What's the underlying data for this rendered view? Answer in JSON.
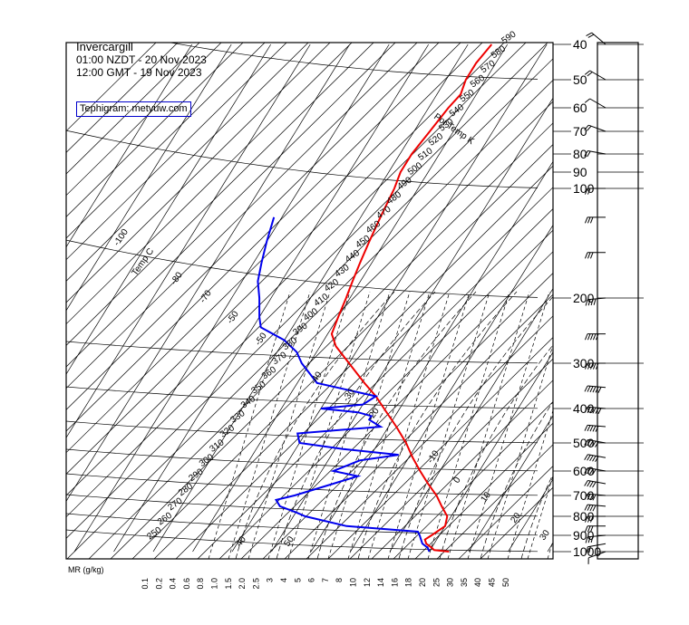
{
  "header": {
    "station": "Invercargill",
    "local_time": "01:00 NZDT - 20 Nov 2023",
    "utc_time": "12:00 GMT - 19 Nov 2023",
    "credit": "Tephigram: metvuw.com"
  },
  "colors": {
    "temperature": "#ee0000",
    "dewpoint": "#0000ee",
    "grid": "#000000",
    "credit_border": "#0000cc"
  },
  "chart_data": {
    "type": "tephigram",
    "title": "Invercargill",
    "pressure_levels_hpa": [
      1000,
      900,
      800,
      700,
      600,
      500,
      400,
      300,
      200,
      100,
      90,
      80,
      70,
      60,
      50,
      40
    ],
    "pressure_tick_labels": [
      "1000",
      "900",
      "800",
      "700",
      "600",
      "500",
      "400",
      "300",
      "200",
      "100",
      "90",
      "80",
      "70",
      "60",
      "50",
      "40"
    ],
    "mixing_ratio_label": "MR (g/kg)",
    "mixing_ratio_ticks": [
      "0.1",
      "0.2",
      "0.4",
      "0.6",
      "0.8",
      "1.0",
      "1.5",
      "2.0",
      "2.5",
      "3",
      "4",
      "5",
      "6",
      "7",
      "8",
      "10",
      "12",
      "14",
      "16",
      "18",
      "20",
      "25",
      "30",
      "35",
      "40",
      "45",
      "50"
    ],
    "temperature_axis_label": "Temp C",
    "theta_axis_label": "Pot Temp K",
    "theta_labels": [
      "250",
      "260",
      "270",
      "280",
      "290",
      "300",
      "310",
      "320",
      "330",
      "340",
      "350",
      "360",
      "370",
      "380",
      "390",
      "400",
      "410",
      "420",
      "430",
      "440",
      "450",
      "460",
      "470",
      "480",
      "490",
      "500",
      "510",
      "520",
      "530",
      "540",
      "550",
      "560",
      "570",
      "580",
      "590"
    ],
    "temp_isotherm_labels": [
      "-100",
      "-80",
      "-70",
      "-50",
      "-50",
      "-40",
      "-30",
      "-20",
      "-10",
      "0",
      "10",
      "20",
      "30",
      "40",
      "50"
    ],
    "temperature_profile": [
      {
        "p": 1000,
        "t": 15
      },
      {
        "p": 990,
        "t": 11
      },
      {
        "p": 975,
        "t": 10
      },
      {
        "p": 950,
        "t": 8
      },
      {
        "p": 925,
        "t": 7
      },
      {
        "p": 900,
        "t": 8
      },
      {
        "p": 875,
        "t": 9
      },
      {
        "p": 850,
        "t": 10
      },
      {
        "p": 800,
        "t": 9
      },
      {
        "p": 750,
        "t": 6
      },
      {
        "p": 700,
        "t": 3
      },
      {
        "p": 650,
        "t": -1
      },
      {
        "p": 600,
        "t": -5
      },
      {
        "p": 550,
        "t": -9
      },
      {
        "p": 500,
        "t": -13
      },
      {
        "p": 450,
        "t": -18
      },
      {
        "p": 400,
        "t": -24
      },
      {
        "p": 370,
        "t": -28
      },
      {
        "p": 340,
        "t": -33
      },
      {
        "p": 300,
        "t": -40
      },
      {
        "p": 270,
        "t": -46
      },
      {
        "p": 250,
        "t": -49
      },
      {
        "p": 225,
        "t": -50
      },
      {
        "p": 200,
        "t": -51
      },
      {
        "p": 180,
        "t": -52
      },
      {
        "p": 160,
        "t": -53
      },
      {
        "p": 140,
        "t": -54
      },
      {
        "p": 120,
        "t": -55
      },
      {
        "p": 100,
        "t": -56
      },
      {
        "p": 90,
        "t": -57
      },
      {
        "p": 80,
        "t": -57
      },
      {
        "p": 70,
        "t": -56
      },
      {
        "p": 60,
        "t": -55
      },
      {
        "p": 55,
        "t": -54
      },
      {
        "p": 50,
        "t": -55
      },
      {
        "p": 45,
        "t": -55
      },
      {
        "p": 40,
        "t": -54
      }
    ],
    "dewpoint_profile": [
      {
        "p": 1000,
        "t": 10
      },
      {
        "p": 975,
        "t": 9
      },
      {
        "p": 950,
        "t": 7
      },
      {
        "p": 925,
        "t": 6
      },
      {
        "p": 900,
        "t": 5
      },
      {
        "p": 880,
        "t": 4
      },
      {
        "p": 850,
        "t": -15
      },
      {
        "p": 800,
        "t": -27
      },
      {
        "p": 780,
        "t": -30
      },
      {
        "p": 750,
        "t": -35
      },
      {
        "p": 720,
        "t": -37
      },
      {
        "p": 700,
        "t": -33
      },
      {
        "p": 650,
        "t": -25
      },
      {
        "p": 620,
        "t": -20
      },
      {
        "p": 600,
        "t": -27
      },
      {
        "p": 560,
        "t": -22
      },
      {
        "p": 540,
        "t": -13
      },
      {
        "p": 520,
        "t": -28
      },
      {
        "p": 500,
        "t": -40
      },
      {
        "p": 470,
        "t": -42
      },
      {
        "p": 450,
        "t": -22
      },
      {
        "p": 430,
        "t": -26
      },
      {
        "p": 420,
        "t": -26
      },
      {
        "p": 410,
        "t": -30
      },
      {
        "p": 400,
        "t": -40
      },
      {
        "p": 390,
        "t": -30
      },
      {
        "p": 370,
        "t": -28
      },
      {
        "p": 340,
        "t": -45
      },
      {
        "p": 300,
        "t": -52
      },
      {
        "p": 280,
        "t": -55
      },
      {
        "p": 260,
        "t": -60
      },
      {
        "p": 240,
        "t": -68
      },
      {
        "p": 225,
        "t": -70
      },
      {
        "p": 200,
        "t": -73
      },
      {
        "p": 180,
        "t": -76
      },
      {
        "p": 160,
        "t": -78
      },
      {
        "p": 140,
        "t": -80
      },
      {
        "p": 120,
        "t": -82
      }
    ],
    "wind_barbs": [
      {
        "p": 1000,
        "dir": 250,
        "kt": 15
      },
      {
        "p": 950,
        "dir": 260,
        "kt": 25
      },
      {
        "p": 900,
        "dir": 265,
        "kt": 30
      },
      {
        "p": 850,
        "dir": 270,
        "kt": 35
      },
      {
        "p": 800,
        "dir": 270,
        "kt": 35
      },
      {
        "p": 750,
        "dir": 275,
        "kt": 40
      },
      {
        "p": 700,
        "dir": 275,
        "kt": 40
      },
      {
        "p": 650,
        "dir": 280,
        "kt": 45
      },
      {
        "p": 600,
        "dir": 280,
        "kt": 45
      },
      {
        "p": 550,
        "dir": 280,
        "kt": 50
      },
      {
        "p": 500,
        "dir": 280,
        "kt": 55
      },
      {
        "p": 450,
        "dir": 275,
        "kt": 55
      },
      {
        "p": 400,
        "dir": 275,
        "kt": 60
      },
      {
        "p": 350,
        "dir": 275,
        "kt": 60
      },
      {
        "p": 300,
        "dir": 270,
        "kt": 55
      },
      {
        "p": 250,
        "dir": 270,
        "kt": 50
      },
      {
        "p": 200,
        "dir": 265,
        "kt": 45
      },
      {
        "p": 150,
        "dir": 270,
        "kt": 35
      },
      {
        "p": 120,
        "dir": 270,
        "kt": 30
      },
      {
        "p": 100,
        "dir": 270,
        "kt": 25
      },
      {
        "p": 80,
        "dir": 280,
        "kt": 20
      },
      {
        "p": 70,
        "dir": 290,
        "kt": 20
      },
      {
        "p": 60,
        "dir": 300,
        "kt": 15
      },
      {
        "p": 50,
        "dir": 300,
        "kt": 20
      },
      {
        "p": 40,
        "dir": 310,
        "kt": 20
      }
    ]
  }
}
